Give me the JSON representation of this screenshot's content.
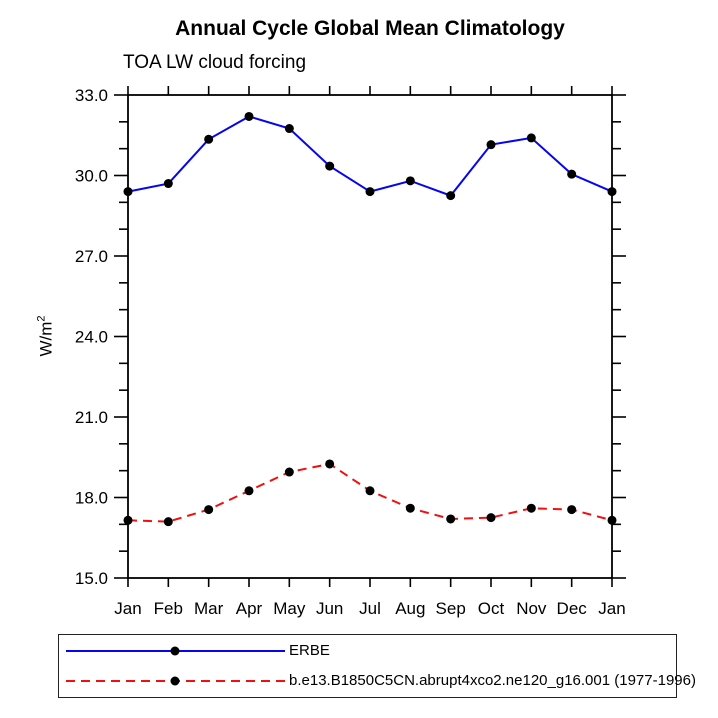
{
  "chart_data": {
    "type": "line",
    "title": "Annual Cycle Global Mean Climatology",
    "subtitle": "TOA LW cloud forcing",
    "ylabel_base": "W/m",
    "ylabel_sup": "2",
    "xlabel": "",
    "categories": [
      "Jan",
      "Feb",
      "Mar",
      "Apr",
      "May",
      "Jun",
      "Jul",
      "Aug",
      "Sep",
      "Oct",
      "Nov",
      "Dec",
      "Jan"
    ],
    "series": [
      {
        "name": "ERBE",
        "color": "#0505f0",
        "line_style": "solid",
        "marker": "filled-circle",
        "marker_color": "#000000",
        "values": [
          29.4,
          29.7,
          31.35,
          32.2,
          31.75,
          30.35,
          29.4,
          29.8,
          29.25,
          31.15,
          31.4,
          30.05,
          29.4
        ]
      },
      {
        "name": "b.e13.B1850C5CN.abrupt4xco2.ne120_g16.001 (1977-1996)",
        "color": "#f20f0f",
        "line_style": "dashed",
        "marker": "filled-circle",
        "marker_color": "#000000",
        "values": [
          17.15,
          17.1,
          17.55,
          18.25,
          18.95,
          19.25,
          18.25,
          17.6,
          17.2,
          17.25,
          17.6,
          17.55,
          17.15
        ]
      }
    ],
    "ylim": [
      15.0,
      33.0
    ],
    "ytick_major_step": 3,
    "ytick_minor_step": 1,
    "ytick_labels": [
      "15.0",
      "18.0",
      "21.0",
      "24.0",
      "27.0",
      "30.0",
      "33.0"
    ],
    "grid": false,
    "legend_position": "bottom-left",
    "frame_color": "#000000"
  }
}
